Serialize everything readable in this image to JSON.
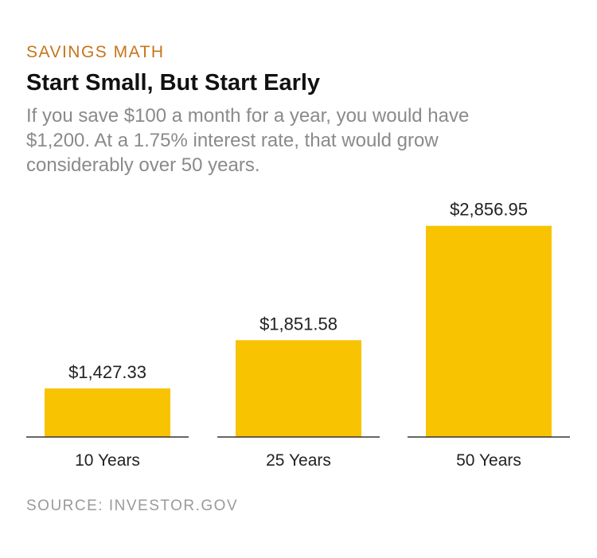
{
  "header": {
    "kicker": "SAVINGS MATH",
    "title": "Start Small, But Start Early",
    "subtitle": "If you save $100 a month for a year, you would have $1,200. At a 1.75% interest rate, that would grow considerably over 50 years."
  },
  "footer": {
    "source": "SOURCE: INVESTOR.GOV"
  },
  "colors": {
    "bar": "#f8c300",
    "kicker": "#c8741a",
    "baseline": "#333333"
  },
  "chart_data": {
    "type": "bar",
    "categories": [
      "10 Years",
      "25 Years",
      "50 Years"
    ],
    "values": [
      1427.33,
      1851.58,
      2856.95
    ],
    "value_labels": [
      "$1,427.33",
      "$1,851.58",
      "$2,856.95"
    ],
    "title": "Start Small, But Start Early",
    "xlabel": "",
    "ylabel": "",
    "ylim": [
      1000,
      3100
    ],
    "grid": false,
    "legend": "none"
  }
}
